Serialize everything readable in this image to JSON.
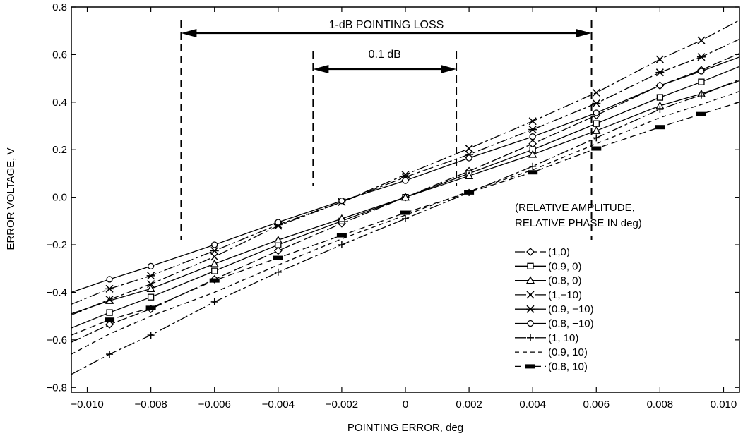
{
  "chart_data": {
    "type": "line",
    "xlabel": "POINTING ERROR, deg",
    "ylabel": "ERROR VOLTAGE, V",
    "xlim": [
      -0.0105,
      0.0105
    ],
    "ylim": [
      -0.82,
      0.8
    ],
    "x_ticks": [
      -0.01,
      -0.008,
      -0.006,
      -0.004,
      -0.002,
      0,
      0.002,
      0.004,
      0.006,
      0.008,
      0.01
    ],
    "x_tick_labels": [
      "−0.010",
      "−0.008",
      "−0.006",
      "−0.004",
      "−0.002",
      "0",
      "0.002",
      "0.004",
      "0.006",
      "0.008",
      "0.010"
    ],
    "y_ticks": [
      -0.8,
      -0.6,
      -0.4,
      -0.2,
      0.0,
      0.2,
      0.4,
      0.6,
      0.8
    ],
    "y_tick_labels": [
      "−0.8",
      "−0.6",
      "−0.4",
      "−0.2",
      "0.0",
      "0.2",
      "0.4",
      "0.6",
      "0.8"
    ],
    "grid": false,
    "legend": {
      "placement": "right",
      "title_line1": "(RELATIVE AMPLITUDE,",
      "title_line2": "RELATIVE PHASE IN deg)"
    },
    "annotations": [
      {
        "label": "1-dB POINTING LOSS",
        "x_start": -0.00705,
        "x_end": 0.00585
      },
      {
        "label": "0.1 dB",
        "x_start": -0.0029,
        "x_end": 0.0016
      }
    ],
    "x": [
      -0.0105,
      -0.0093,
      -0.008,
      -0.006,
      -0.004,
      -0.002,
      0,
      0.002,
      0.004,
      0.006,
      0.008,
      0.0093,
      0.0105
    ],
    "series": [
      {
        "name": "(1,0)",
        "marker": "diamond",
        "dash": "long",
        "values": [
          -0.61,
          -0.535,
          -0.47,
          -0.345,
          -0.225,
          -0.11,
          0.0,
          0.11,
          0.225,
          0.345,
          0.47,
          0.535,
          0.605
        ]
      },
      {
        "name": "(0.9, 0)",
        "marker": "square",
        "dash": "solid",
        "values": [
          -0.55,
          -0.485,
          -0.42,
          -0.31,
          -0.2,
          -0.1,
          0.0,
          0.1,
          0.2,
          0.31,
          0.42,
          0.485,
          0.55
        ]
      },
      {
        "name": "(0.8, 0)",
        "marker": "triangle",
        "dash": "solid",
        "values": [
          -0.49,
          -0.435,
          -0.385,
          -0.28,
          -0.18,
          -0.09,
          0.0,
          0.09,
          0.18,
          0.28,
          0.385,
          0.435,
          0.49
        ]
      },
      {
        "name": "(1,−10)",
        "marker": "x",
        "dash": "longshort",
        "values": [
          -0.495,
          -0.43,
          -0.365,
          -0.25,
          -0.12,
          -0.02,
          0.095,
          0.205,
          0.32,
          0.44,
          0.58,
          0.66,
          0.745
        ]
      },
      {
        "name": "(0.9, −10)",
        "marker": "star",
        "dash": "longshort",
        "values": [
          -0.45,
          -0.385,
          -0.33,
          -0.225,
          -0.115,
          -0.02,
          0.085,
          0.18,
          0.285,
          0.395,
          0.525,
          0.59,
          0.665
        ]
      },
      {
        "name": "(0.8, −10)",
        "marker": "circle",
        "dash": "solid",
        "values": [
          -0.4,
          -0.345,
          -0.29,
          -0.2,
          -0.105,
          -0.015,
          0.07,
          0.165,
          0.255,
          0.355,
          0.47,
          0.53,
          0.59
        ]
      },
      {
        "name": "(1, 10)",
        "marker": "plus",
        "dash": "longshort",
        "values": [
          -0.745,
          -0.66,
          -0.58,
          -0.44,
          -0.315,
          -0.2,
          -0.09,
          0.02,
          0.13,
          0.25,
          0.37,
          0.43,
          0.495
        ]
      },
      {
        "name": "(0.9, 10)",
        "marker": "none",
        "dash": "short",
        "values": [
          -0.66,
          -0.575,
          -0.5,
          -0.4,
          -0.285,
          -0.175,
          -0.075,
          0.025,
          0.115,
          0.225,
          0.335,
          0.39,
          0.445
        ]
      },
      {
        "name": "(0.8, 10)",
        "marker": "bar",
        "dash": "medium",
        "values": [
          -0.58,
          -0.515,
          -0.465,
          -0.35,
          -0.255,
          -0.16,
          -0.065,
          0.02,
          0.105,
          0.205,
          0.295,
          0.35,
          0.4
        ]
      }
    ]
  }
}
